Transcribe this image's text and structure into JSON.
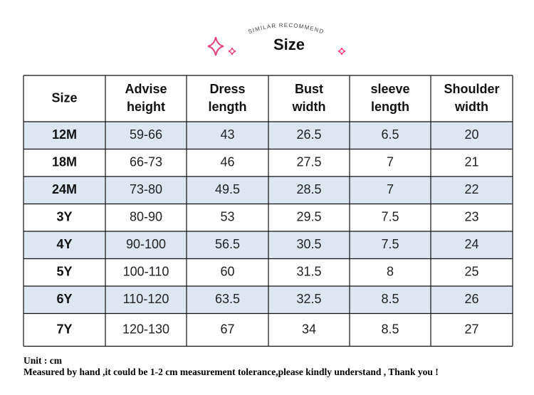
{
  "header": {
    "subtitle": "SIMILAR RECOMMEND",
    "title": "Size"
  },
  "table": {
    "header": [
      [
        "Size"
      ],
      [
        "Advise",
        "height"
      ],
      [
        "Dress",
        "length"
      ],
      [
        "Bust",
        "width"
      ],
      [
        "sleeve",
        "length"
      ],
      [
        "Shoulder",
        "width"
      ]
    ],
    "rows": [
      [
        "12M",
        "59-66",
        "43",
        "26.5",
        "6.5",
        "20"
      ],
      [
        "18M",
        "66-73",
        "46",
        "27.5",
        "7",
        "21"
      ],
      [
        "24M",
        "73-80",
        "49.5",
        "28.5",
        "7",
        "22"
      ],
      [
        "3Y",
        "80-90",
        "53",
        "29.5",
        "7.5",
        "23"
      ],
      [
        "4Y",
        "90-100",
        "56.5",
        "30.5",
        "7.5",
        "24"
      ],
      [
        "5Y",
        "100-110",
        "60",
        "31.5",
        "8",
        "25"
      ],
      [
        "6Y",
        "110-120",
        "63.5",
        "32.5",
        "8.5",
        "26"
      ],
      [
        "7Y",
        "120-130",
        "67",
        "34",
        "8.5",
        "27"
      ]
    ]
  },
  "notes": [
    "Unit : cm",
    "Measured by hand ,it could be 1-2 cm measurement tolerance,please kindly understand , Thank you !"
  ]
}
